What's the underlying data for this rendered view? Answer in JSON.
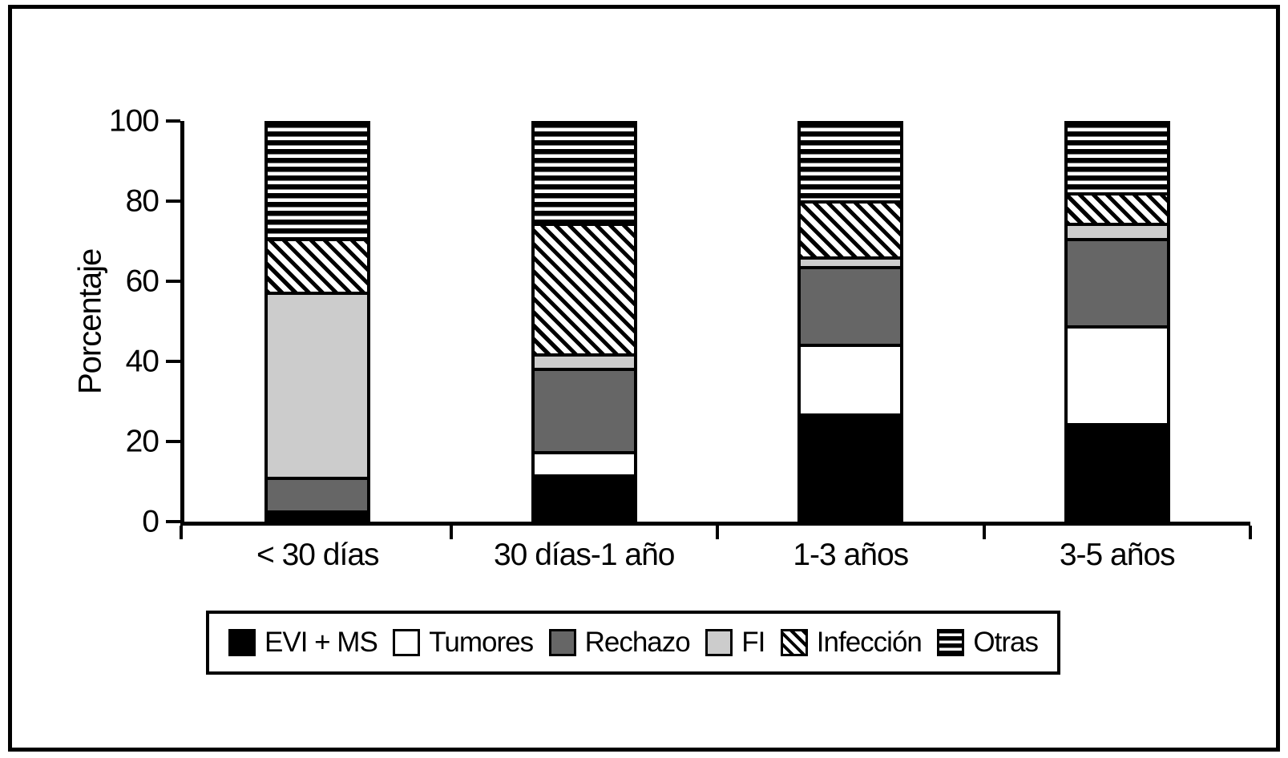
{
  "figure": {
    "background": "#ffffff",
    "border_color": "#000000"
  },
  "chart_data": {
    "type": "bar",
    "stacked": true,
    "title": "",
    "xlabel": "",
    "ylabel": "Porcentaje",
    "ylim": [
      0,
      100
    ],
    "yticks": [
      0,
      20,
      40,
      60,
      80,
      100
    ],
    "grid": false,
    "legend_position": "bottom",
    "categories": [
      "< 30 días",
      "30 días-1 año",
      "1-3 años",
      "3-5 años"
    ],
    "series": [
      {
        "name": "EVI + MS",
        "pattern": "solid",
        "color": "#000000",
        "values": [
          2,
          11,
          26.5,
          24
        ]
      },
      {
        "name": "Tumores",
        "pattern": "solid",
        "color": "#ffffff",
        "values": [
          0,
          6,
          17.5,
          24.5
        ]
      },
      {
        "name": "Rechazo",
        "pattern": "solid",
        "color": "#666666",
        "values": [
          8.5,
          21,
          19.5,
          22
        ]
      },
      {
        "name": "FI",
        "pattern": "solid",
        "color": "#cccccc",
        "values": [
          46.5,
          3.5,
          2.5,
          4
        ]
      },
      {
        "name": "Infección",
        "pattern": "diagonal-hatch",
        "color": "#000000",
        "values": [
          13.5,
          33,
          14,
          7.5
        ]
      },
      {
        "name": "Otras",
        "pattern": "horizontal-stripes",
        "color": "#000000",
        "values": [
          29.5,
          25.5,
          20,
          18
        ]
      }
    ]
  }
}
